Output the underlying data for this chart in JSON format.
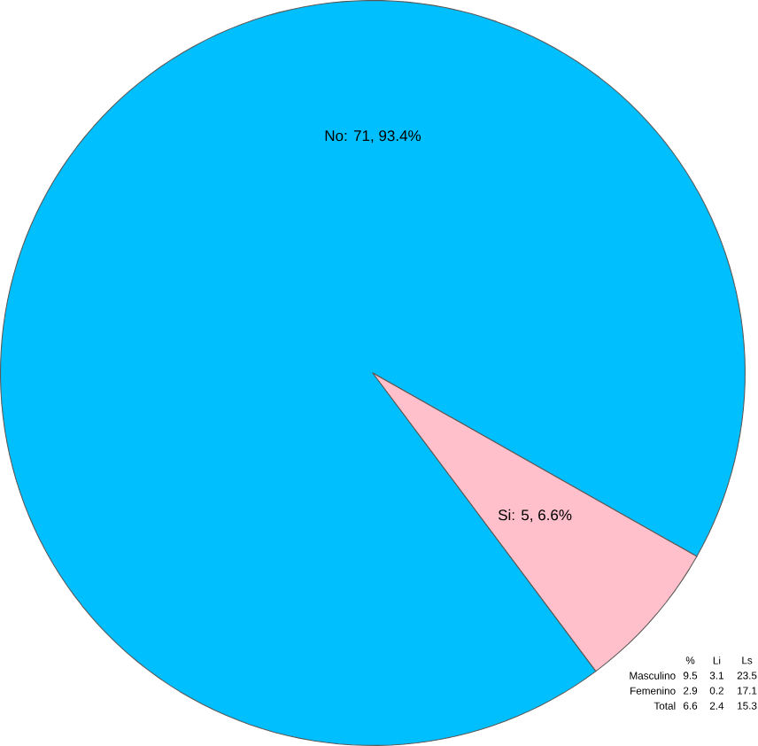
{
  "chart_data": {
    "type": "pie",
    "categories": [
      null,
      null
    ],
    "values": [
      71,
      5
    ],
    "colors": [
      "#00bfff",
      "#ffc0cb"
    ],
    "value_labels": [
      "No: 71,   93.4%",
      "Si: 5,   6.6%"
    ],
    "annotations": [
      "%",
      "Li",
      "Ls",
      "Masculino",
      "9.5",
      "3.1",
      "23.5",
      "Femenino",
      "2.9",
      "0.2",
      "17.1",
      "Total",
      "6.6",
      "2.4",
      "15.3"
    ]
  }
}
